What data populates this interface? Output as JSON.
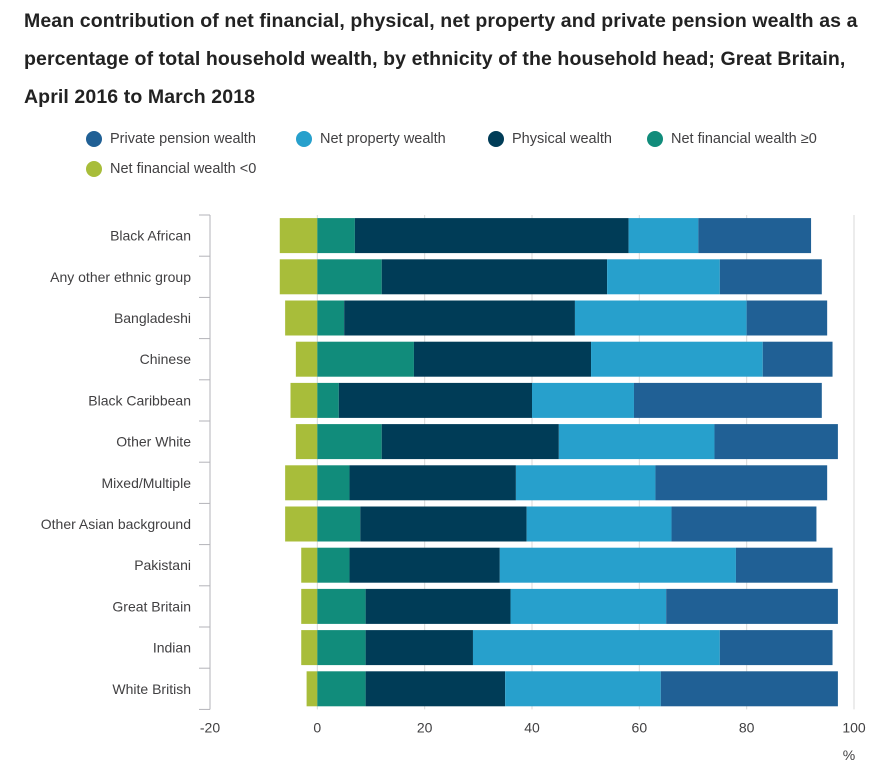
{
  "title": "Mean contribution of net financial, physical, net property and private pension wealth as a percentage of total household wealth, by ethnicity of the household head; Great Britain, April 2016 to March 2018",
  "legend": [
    {
      "key": "private_pension",
      "label": "Private pension wealth",
      "color": "#206095"
    },
    {
      "key": "net_property",
      "label": "Net property wealth",
      "color": "#27a0cc"
    },
    {
      "key": "physical",
      "label": "Physical wealth",
      "color": "#003c57"
    },
    {
      "key": "net_financial_pos",
      "label": "Net financial wealth ≥0",
      "color": "#118c7b"
    },
    {
      "key": "net_financial_neg",
      "label": "Net financial wealth <0",
      "color": "#a8bd3a"
    }
  ],
  "chart_data": {
    "type": "bar",
    "orientation": "horizontal",
    "stacked": true,
    "title": "Mean contribution of net financial, physical, net property and private pension wealth as a percentage of total household wealth, by ethnicity of the household head; Great Britain, April 2016 to March 2018",
    "xlabel": "%",
    "ylabel": "",
    "xlim": [
      -20,
      100
    ],
    "xticks": [
      -20,
      0,
      20,
      40,
      60,
      80,
      100
    ],
    "grid": true,
    "legend_position": "top",
    "categories": [
      "Black African",
      "Any other ethnic group",
      "Bangladeshi",
      "Chinese",
      "Black Caribbean",
      "Other White",
      "Mixed/Multiple",
      "Other Asian background",
      "Pakistani",
      "Great Britain",
      "Indian",
      "White British"
    ],
    "series": [
      {
        "name": "Net financial wealth <0",
        "color": "#a8bd3a",
        "values": [
          -7,
          -7,
          -6,
          -4,
          -5,
          -4,
          -6,
          -6,
          -3,
          -3,
          -3,
          -2
        ]
      },
      {
        "name": "Net financial wealth ≥0",
        "color": "#118c7b",
        "values": [
          7,
          12,
          5,
          18,
          4,
          12,
          6,
          8,
          6,
          9,
          9,
          9
        ]
      },
      {
        "name": "Physical wealth",
        "color": "#003c57",
        "values": [
          51,
          42,
          43,
          33,
          36,
          33,
          31,
          31,
          28,
          27,
          20,
          26
        ]
      },
      {
        "name": "Net property wealth",
        "color": "#27a0cc",
        "values": [
          13,
          21,
          32,
          32,
          19,
          29,
          26,
          27,
          44,
          29,
          46,
          29
        ]
      },
      {
        "name": "Private pension wealth",
        "color": "#206095",
        "values": [
          21,
          19,
          15,
          13,
          35,
          23,
          32,
          27,
          18,
          32,
          21,
          33
        ]
      }
    ]
  }
}
